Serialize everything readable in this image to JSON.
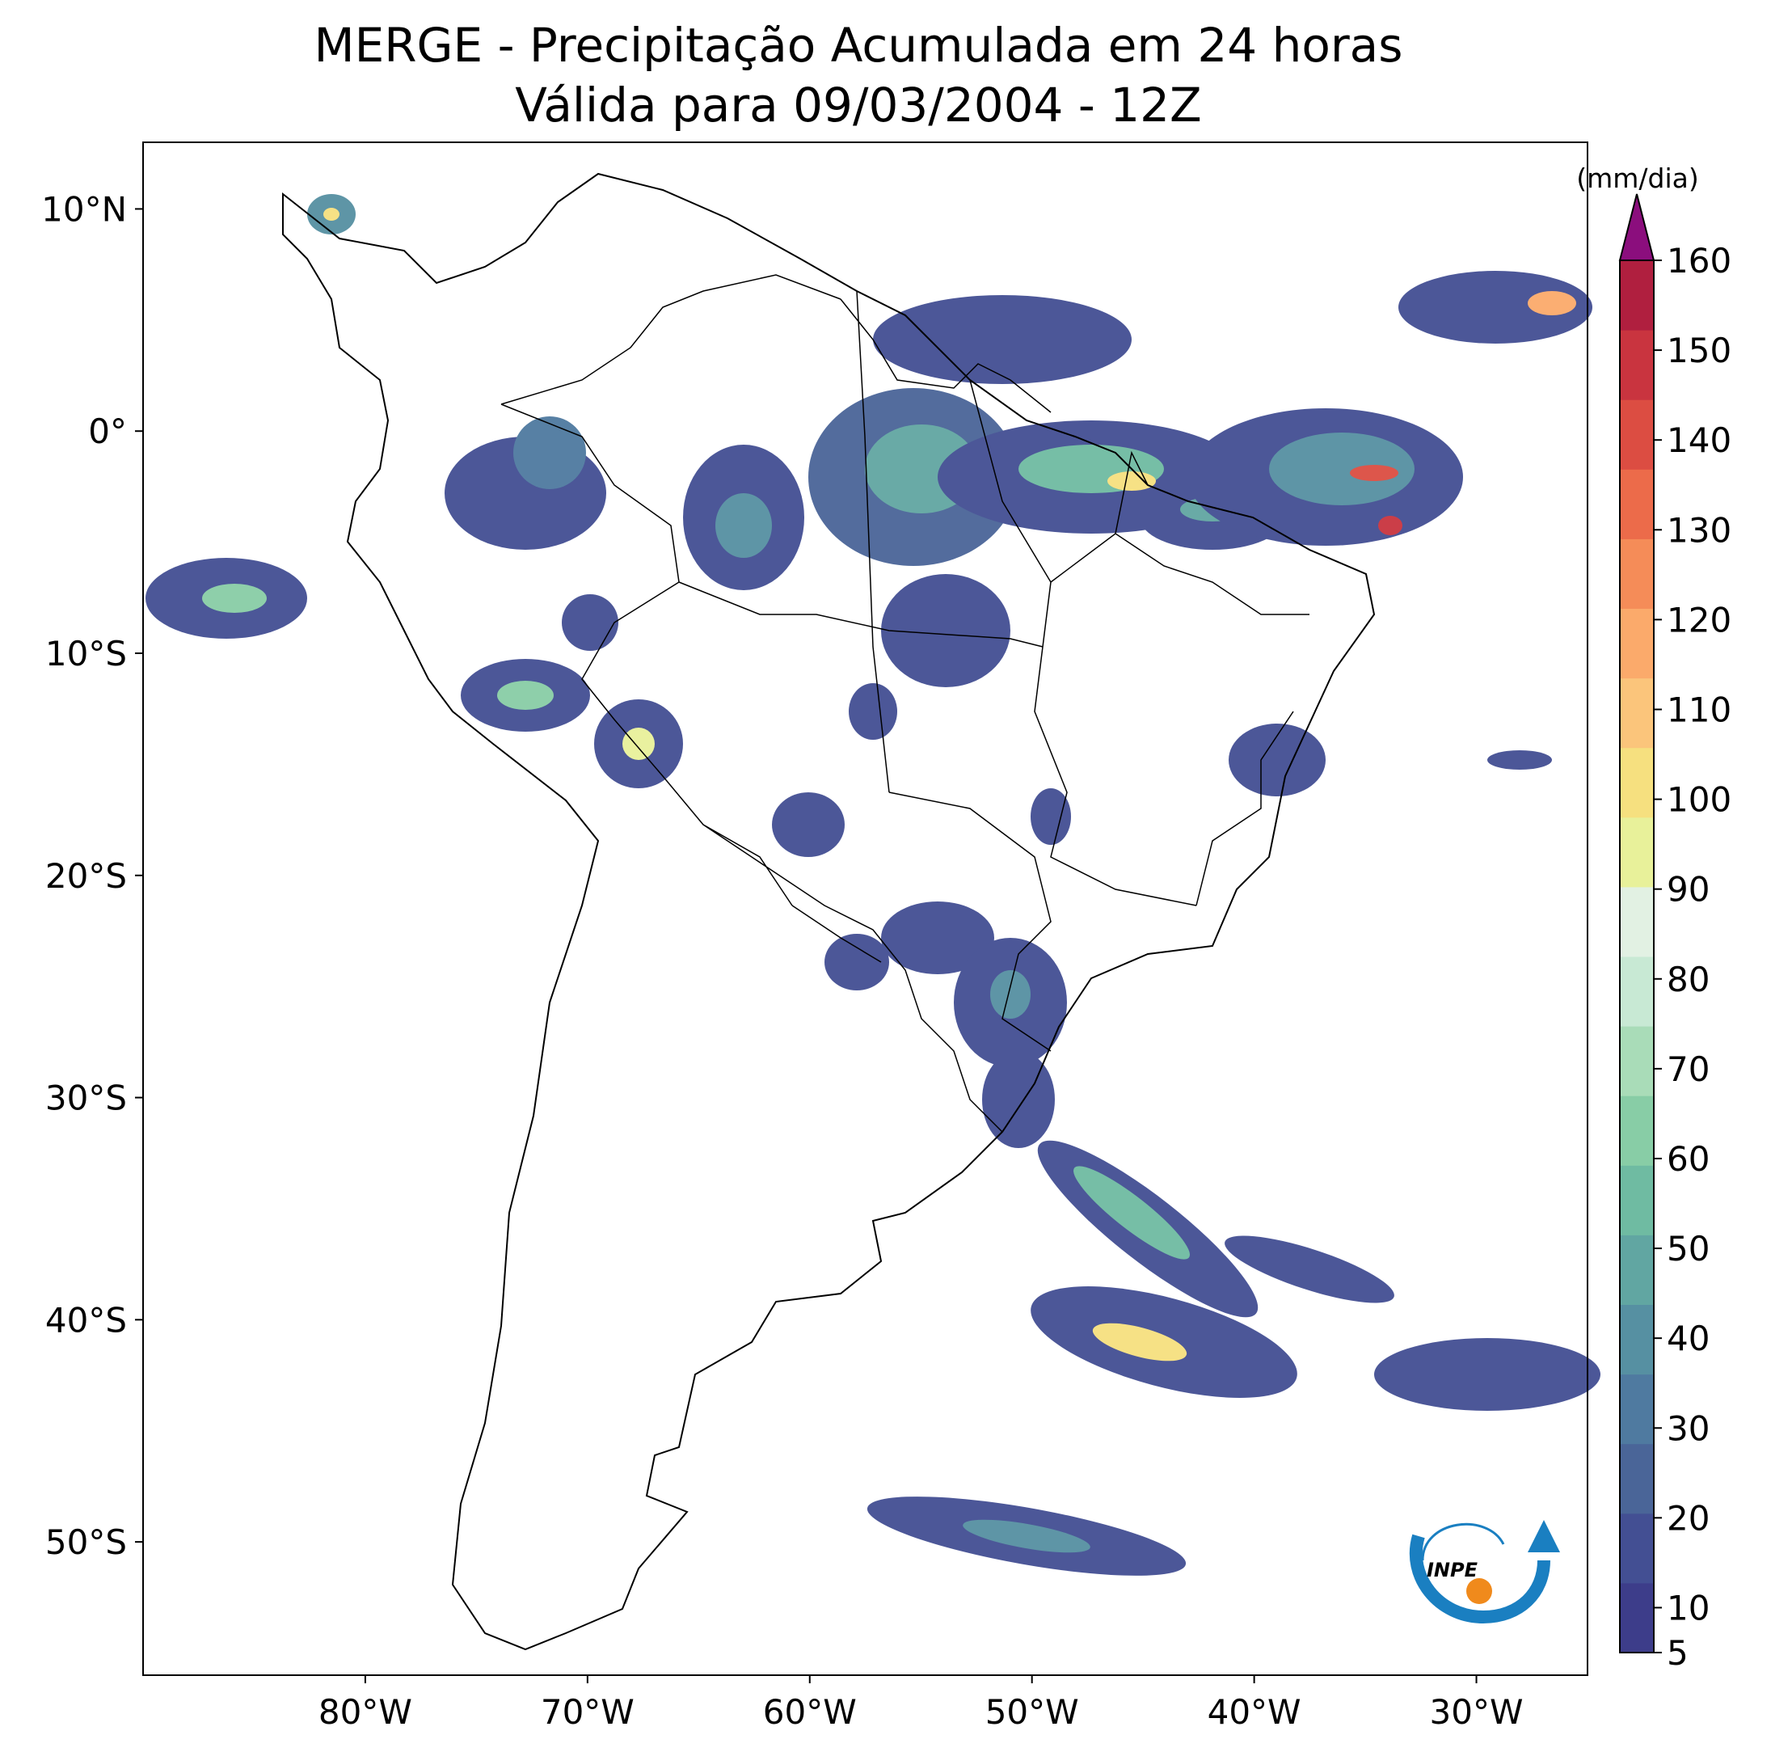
{
  "title": {
    "line1": "MERGE - Precipitação Acumulada em 24 horas",
    "line2": "Válida para 09/03/2004 - 12Z"
  },
  "axes": {
    "lat_ticks": [
      {
        "value": 10,
        "label": "10°N"
      },
      {
        "value": 0,
        "label": "0°"
      },
      {
        "value": -10,
        "label": "10°S"
      },
      {
        "value": -20,
        "label": "20°S"
      },
      {
        "value": -30,
        "label": "30°S"
      },
      {
        "value": -40,
        "label": "40°S"
      },
      {
        "value": -50,
        "label": "50°S"
      }
    ],
    "lon_ticks": [
      {
        "value": -80,
        "label": "80°W"
      },
      {
        "value": -70,
        "label": "70°W"
      },
      {
        "value": -60,
        "label": "60°W"
      },
      {
        "value": -50,
        "label": "50°W"
      },
      {
        "value": -40,
        "label": "40°W"
      },
      {
        "value": -30,
        "label": "30°W"
      }
    ],
    "lon_range": [
      -90,
      -25
    ],
    "lat_range": [
      -56,
      13
    ]
  },
  "colorbar": {
    "unit": "(mm/dia)",
    "tick_labels": [
      "5",
      "10",
      "20",
      "30",
      "40",
      "50",
      "60",
      "70",
      "80",
      "90",
      "100",
      "110",
      "120",
      "130",
      "140",
      "150",
      "160"
    ],
    "levels": [
      5,
      10,
      20,
      30,
      40,
      50,
      60,
      70,
      80,
      90,
      100,
      110,
      120,
      130,
      140,
      150,
      160
    ],
    "extend": "max",
    "colors": [
      "#3d3d8a",
      "#434f93",
      "#4a6598",
      "#4f7aa0",
      "#5690a2",
      "#61a6a2",
      "#6fbba2",
      "#88cda6",
      "#a9dcb8",
      "#c8e9d4",
      "#e2f1e3",
      "#e8f19a",
      "#f6e07f",
      "#fbc57b",
      "#fbaa6b",
      "#f58c58",
      "#ec6b4a",
      "#dc4d42",
      "#c9343f",
      "#b01f3f"
    ],
    "over_color": "#8b0e7d"
  },
  "logo": {
    "text": "INPE",
    "colors": {
      "arc_blue": "#1a7fc1",
      "dot_orange": "#f08a1c"
    }
  }
}
